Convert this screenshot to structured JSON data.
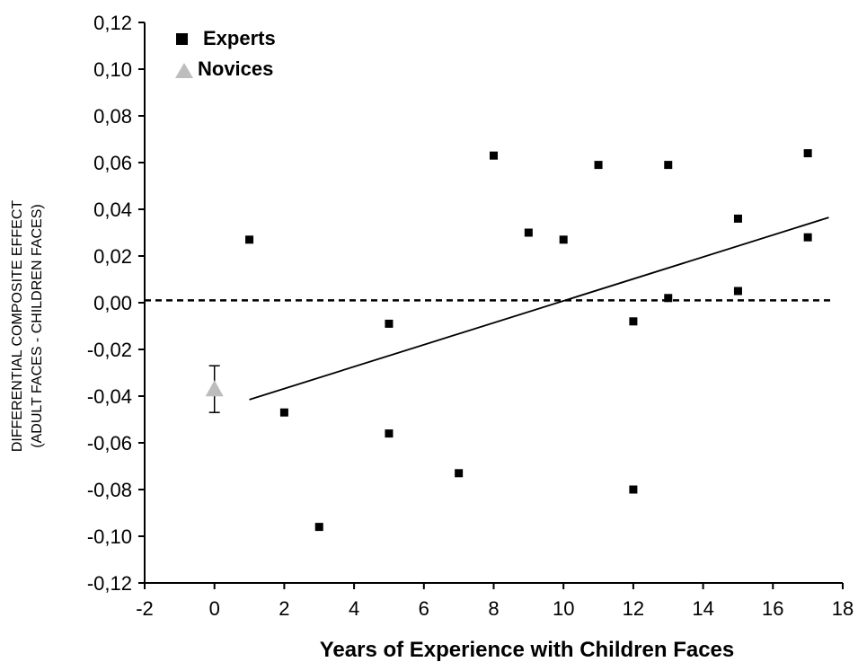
{
  "chart_data": {
    "type": "scatter",
    "xlabel": "Years of Experience with Children Faces",
    "ylabel_lines": [
      "DIFFERENTIAL COMPOSITE EFFECT",
      "(ADULT FACES - CHILDREN FACES)"
    ],
    "xlim": [
      -2,
      18
    ],
    "ylim": [
      -0.12,
      0.12
    ],
    "x_ticks": [
      "-2",
      "0",
      "2",
      "4",
      "6",
      "8",
      "10",
      "12",
      "14",
      "16",
      "18"
    ],
    "y_ticks": [
      "0,12",
      "0,10",
      "0,08",
      "0,06",
      "0,04",
      "0,02",
      "0,00",
      "-0,02",
      "-0,04",
      "-0,06",
      "-0,08",
      "-0,10",
      "-0,12"
    ],
    "series": [
      {
        "name": "Experts",
        "marker": "square",
        "color": "#000000",
        "points": [
          {
            "x": 1,
            "y": 0.027
          },
          {
            "x": 2,
            "y": -0.047
          },
          {
            "x": 3,
            "y": -0.096
          },
          {
            "x": 5,
            "y": -0.009
          },
          {
            "x": 5,
            "y": -0.056
          },
          {
            "x": 7,
            "y": -0.073
          },
          {
            "x": 8,
            "y": 0.063
          },
          {
            "x": 9,
            "y": 0.03
          },
          {
            "x": 10,
            "y": 0.027
          },
          {
            "x": 11,
            "y": 0.059
          },
          {
            "x": 12,
            "y": -0.008
          },
          {
            "x": 12,
            "y": -0.08
          },
          {
            "x": 13,
            "y": 0.059
          },
          {
            "x": 13,
            "y": 0.002
          },
          {
            "x": 15,
            "y": 0.036
          },
          {
            "x": 15,
            "y": 0.005
          },
          {
            "x": 17,
            "y": 0.064
          },
          {
            "x": 17,
            "y": 0.028
          }
        ]
      },
      {
        "name": "Novices",
        "marker": "triangle",
        "color": "#bdbdbd",
        "points": [
          {
            "x": 0,
            "y": -0.037,
            "err_low": -0.047,
            "err_high": -0.027
          }
        ]
      }
    ],
    "trendline": {
      "x": [
        1,
        17.6
      ],
      "y": [
        -0.0415,
        0.0365
      ]
    },
    "reference_line": {
      "y": 0.001,
      "style": "dashed"
    },
    "legend_position": "top-left",
    "grid": false
  }
}
